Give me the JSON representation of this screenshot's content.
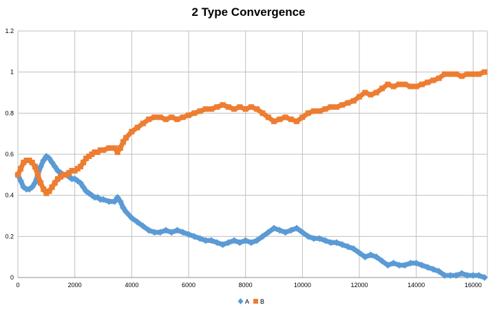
{
  "chart_data": {
    "type": "line",
    "title": "2 Type Convergence",
    "xlabel": "",
    "ylabel": "",
    "xlim": [
      0,
      16500
    ],
    "ylim": [
      0,
      1.2
    ],
    "x_ticks": [
      0,
      2000,
      4000,
      6000,
      8000,
      10000,
      12000,
      14000,
      16000
    ],
    "y_ticks": [
      0,
      0.2,
      0.4,
      0.6,
      0.8,
      1,
      1.2
    ],
    "x_tick_labels": [
      "0",
      "2000",
      "4000",
      "6000",
      "8000",
      "10000",
      "12000",
      "14000",
      "16000"
    ],
    "y_tick_labels": [
      "0",
      "0.2",
      "0.4",
      "0.6",
      "0.8",
      "1",
      "1.2"
    ],
    "grid": true,
    "legend": "bottom-center",
    "series": [
      {
        "name": "A",
        "color": "#5B9BD5",
        "marker": "diamond",
        "x": [
          0,
          100,
          200,
          300,
          400,
          500,
          600,
          700,
          800,
          900,
          1000,
          1100,
          1200,
          1300,
          1400,
          1500,
          1600,
          1700,
          1800,
          1900,
          2000,
          2100,
          2200,
          2300,
          2400,
          2500,
          2600,
          2700,
          2800,
          2900,
          3000,
          3200,
          3400,
          3500,
          3600,
          3700,
          3800,
          4000,
          4200,
          4400,
          4600,
          4800,
          5000,
          5200,
          5400,
          5600,
          5800,
          6000,
          6200,
          6400,
          6600,
          6800,
          7000,
          7200,
          7400,
          7600,
          7800,
          8000,
          8200,
          8400,
          8600,
          8800,
          9000,
          9200,
          9400,
          9600,
          9800,
          10000,
          10200,
          10400,
          10600,
          10800,
          11000,
          11200,
          11400,
          11600,
          11800,
          12000,
          12200,
          12400,
          12600,
          12800,
          13000,
          13200,
          13400,
          13600,
          13800,
          14000,
          14200,
          14400,
          14600,
          14800,
          15000,
          15200,
          15400,
          15600,
          15800,
          16000,
          16200,
          16400
        ],
        "y": [
          0.5,
          0.47,
          0.44,
          0.43,
          0.43,
          0.44,
          0.46,
          0.5,
          0.54,
          0.57,
          0.59,
          0.58,
          0.56,
          0.54,
          0.52,
          0.51,
          0.5,
          0.5,
          0.49,
          0.48,
          0.48,
          0.47,
          0.46,
          0.44,
          0.42,
          0.41,
          0.4,
          0.39,
          0.39,
          0.38,
          0.38,
          0.37,
          0.37,
          0.39,
          0.37,
          0.34,
          0.32,
          0.29,
          0.27,
          0.25,
          0.23,
          0.22,
          0.22,
          0.23,
          0.22,
          0.23,
          0.22,
          0.21,
          0.2,
          0.19,
          0.18,
          0.18,
          0.17,
          0.16,
          0.17,
          0.18,
          0.17,
          0.18,
          0.17,
          0.18,
          0.2,
          0.22,
          0.24,
          0.23,
          0.22,
          0.23,
          0.24,
          0.22,
          0.2,
          0.19,
          0.19,
          0.18,
          0.17,
          0.17,
          0.16,
          0.15,
          0.14,
          0.12,
          0.1,
          0.11,
          0.1,
          0.08,
          0.06,
          0.07,
          0.06,
          0.06,
          0.07,
          0.07,
          0.06,
          0.05,
          0.04,
          0.03,
          0.01,
          0.01,
          0.01,
          0.02,
          0.01,
          0.01,
          0.01,
          0.0
        ]
      },
      {
        "name": "B",
        "color": "#ED7D31",
        "marker": "square",
        "x": [
          0,
          100,
          200,
          300,
          400,
          500,
          600,
          700,
          800,
          900,
          1000,
          1100,
          1200,
          1300,
          1400,
          1500,
          1600,
          1700,
          1800,
          1900,
          2000,
          2100,
          2200,
          2300,
          2400,
          2500,
          2600,
          2700,
          2800,
          2900,
          3000,
          3200,
          3400,
          3500,
          3600,
          3700,
          3800,
          4000,
          4200,
          4400,
          4600,
          4800,
          5000,
          5200,
          5400,
          5600,
          5800,
          6000,
          6200,
          6400,
          6600,
          6800,
          7000,
          7200,
          7400,
          7600,
          7800,
          8000,
          8200,
          8400,
          8600,
          8800,
          9000,
          9200,
          9400,
          9600,
          9800,
          10000,
          10200,
          10400,
          10600,
          10800,
          11000,
          11200,
          11400,
          11600,
          11800,
          12000,
          12200,
          12400,
          12600,
          12800,
          13000,
          13200,
          13400,
          13600,
          13800,
          14000,
          14200,
          14400,
          14600,
          14800,
          15000,
          15200,
          15400,
          15600,
          15800,
          16000,
          16200,
          16400
        ],
        "y": [
          0.5,
          0.53,
          0.56,
          0.57,
          0.57,
          0.56,
          0.54,
          0.5,
          0.46,
          0.43,
          0.41,
          0.42,
          0.44,
          0.46,
          0.48,
          0.49,
          0.5,
          0.5,
          0.51,
          0.52,
          0.52,
          0.53,
          0.54,
          0.56,
          0.58,
          0.59,
          0.6,
          0.61,
          0.61,
          0.62,
          0.62,
          0.63,
          0.63,
          0.61,
          0.63,
          0.66,
          0.68,
          0.71,
          0.73,
          0.75,
          0.77,
          0.78,
          0.78,
          0.77,
          0.78,
          0.77,
          0.78,
          0.79,
          0.8,
          0.81,
          0.82,
          0.82,
          0.83,
          0.84,
          0.83,
          0.82,
          0.83,
          0.82,
          0.83,
          0.82,
          0.8,
          0.78,
          0.76,
          0.77,
          0.78,
          0.77,
          0.76,
          0.78,
          0.8,
          0.81,
          0.81,
          0.82,
          0.83,
          0.83,
          0.84,
          0.85,
          0.86,
          0.88,
          0.9,
          0.89,
          0.9,
          0.92,
          0.94,
          0.93,
          0.94,
          0.94,
          0.93,
          0.93,
          0.94,
          0.95,
          0.96,
          0.97,
          0.99,
          0.99,
          0.99,
          0.98,
          0.99,
          0.99,
          0.99,
          1.0
        ]
      }
    ]
  }
}
